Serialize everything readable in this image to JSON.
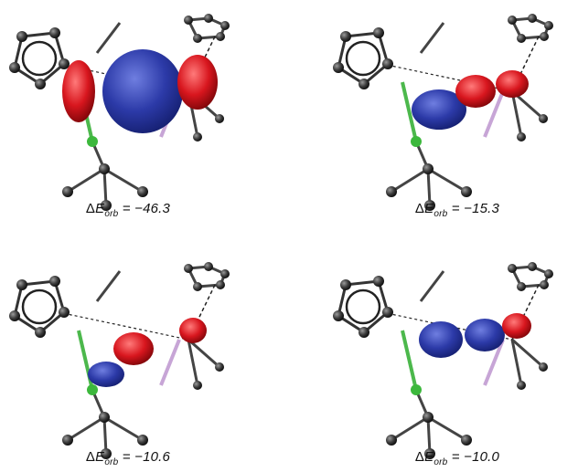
{
  "panels": [
    {
      "id": "panel-1",
      "symbol": "Δ",
      "var": "E",
      "sub": "orb",
      "value": "= −46.3",
      "pattern": "big-blue"
    },
    {
      "id": "panel-2",
      "symbol": "Δ",
      "var": "E",
      "sub": "orb",
      "value": "= −15.3",
      "pattern": "blue-chain"
    },
    {
      "id": "panel-3",
      "symbol": "Δ",
      "var": "E",
      "sub": "orb",
      "value": "= −10.6",
      "pattern": "mixed"
    },
    {
      "id": "panel-4",
      "symbol": "Δ",
      "var": "E",
      "sub": "orb",
      "value": "= −10.0",
      "pattern": "blue-chain2"
    }
  ],
  "colors": {
    "blue_lobe": "#2c3aa8",
    "red_lobe": "#d8161e",
    "atom": "#333333",
    "bond": "#444444",
    "green_bond": "#4cb84c",
    "pink_bond": "#c7a5d6"
  }
}
